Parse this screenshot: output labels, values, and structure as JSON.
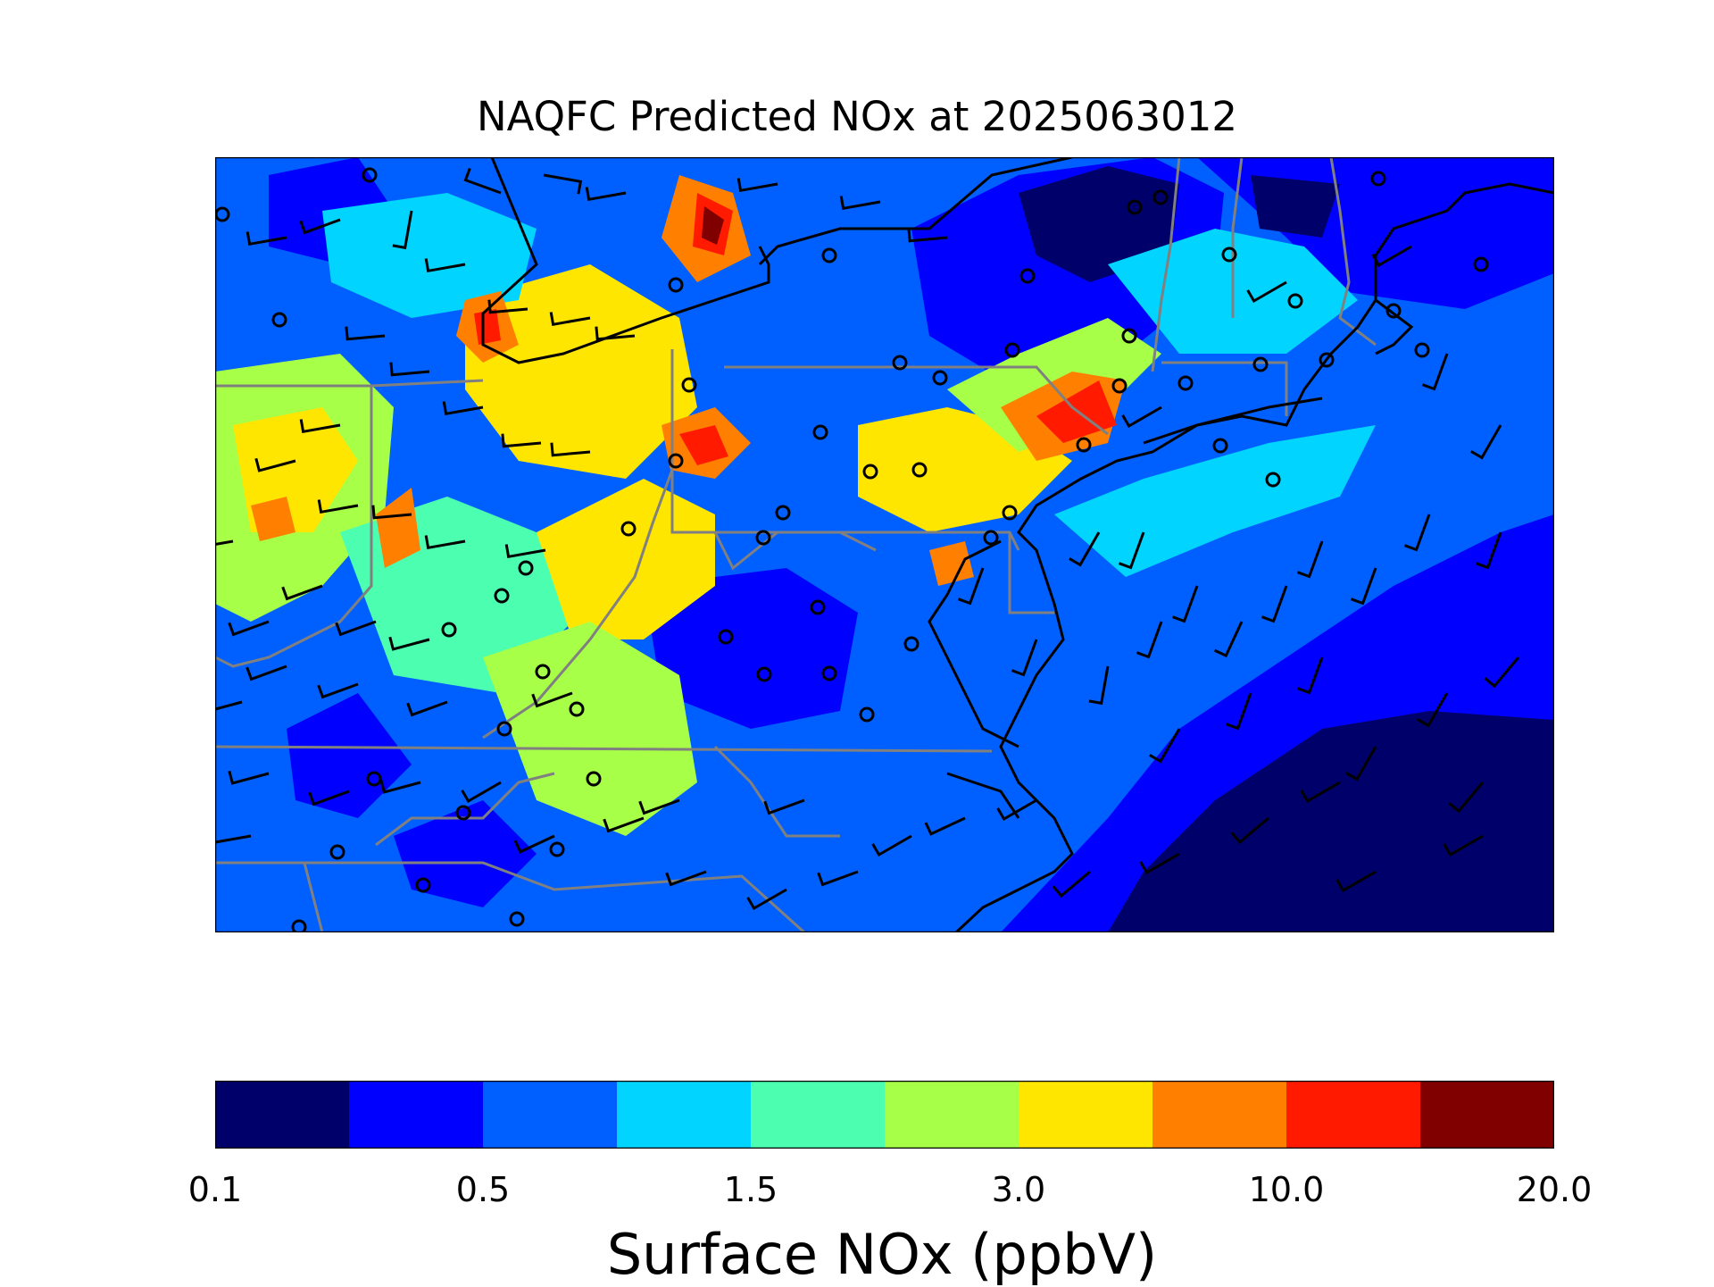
{
  "title": "NAQFC Predicted NOx at 2025063012",
  "colorbar": {
    "label": "Surface NOx (ppbV)",
    "tick_labels": [
      "0.1",
      "0.5",
      "1.5",
      "3.0",
      "10.0",
      "20.0"
    ],
    "tick_bin_index": [
      0,
      2,
      4,
      6,
      8,
      10
    ],
    "colors": [
      "#00006b",
      "#0000ff",
      "#0060ff",
      "#00d4ff",
      "#4cffb0",
      "#a8ff48",
      "#ffe600",
      "#ff8000",
      "#ff1a00",
      "#800000"
    ],
    "outline_color": "#000000"
  },
  "map": {
    "background_color": "#0060ff",
    "coastline_color": "#000000",
    "state_border_color": "#808080",
    "wind_barb_color": "#000000",
    "station_marker": "open-circle",
    "station_marker_color": "#000000"
  }
}
